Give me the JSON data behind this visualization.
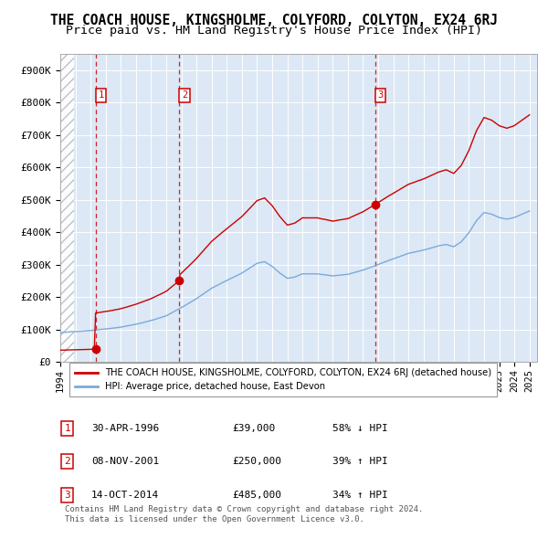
{
  "title": "THE COACH HOUSE, KINGSHOLME, COLYFORD, COLYTON, EX24 6RJ",
  "subtitle": "Price paid vs. HM Land Registry's House Price Index (HPI)",
  "title_fontsize": 10.5,
  "subtitle_fontsize": 9.5,
  "xlim_start": 1994.0,
  "xlim_end": 2025.5,
  "ylim": [
    0,
    950000
  ],
  "yticks": [
    0,
    100000,
    200000,
    300000,
    400000,
    500000,
    600000,
    700000,
    800000,
    900000
  ],
  "ytick_labels": [
    "£0",
    "£100K",
    "£200K",
    "£300K",
    "£400K",
    "£500K",
    "£600K",
    "£700K",
    "£800K",
    "£900K"
  ],
  "xticks": [
    1994,
    1995,
    1996,
    1997,
    1998,
    1999,
    2000,
    2001,
    2002,
    2003,
    2004,
    2005,
    2006,
    2007,
    2008,
    2009,
    2010,
    2011,
    2012,
    2013,
    2014,
    2015,
    2016,
    2017,
    2018,
    2019,
    2020,
    2021,
    2022,
    2023,
    2024,
    2025
  ],
  "hpi_line_color": "#7aaadd",
  "property_line_color": "#cc0000",
  "marker_color": "#cc0000",
  "vline_color": "#cc0000",
  "transaction_dates": [
    1996.33,
    2001.85,
    2014.79
  ],
  "transaction_prices": [
    39000,
    250000,
    485000
  ],
  "transactions": [
    {
      "num": 1,
      "date": "30-APR-1996",
      "price": "£39,000",
      "hpi_rel": "58% ↓ HPI"
    },
    {
      "num": 2,
      "date": "08-NOV-2001",
      "price": "£250,000",
      "hpi_rel": "39% ↑ HPI"
    },
    {
      "num": 3,
      "date": "14-OCT-2014",
      "price": "£485,000",
      "hpi_rel": "34% ↑ HPI"
    }
  ],
  "legend_property": "THE COACH HOUSE, KINGSHOLME, COLYFORD, COLYTON, EX24 6RJ (detached house)",
  "legend_hpi": "HPI: Average price, detached house, East Devon",
  "footnote": "Contains HM Land Registry data © Crown copyright and database right 2024.\nThis data is licensed under the Open Government Licence v3.0.",
  "plot_bg": "#dce8f5",
  "hatch_end": 1994.9
}
